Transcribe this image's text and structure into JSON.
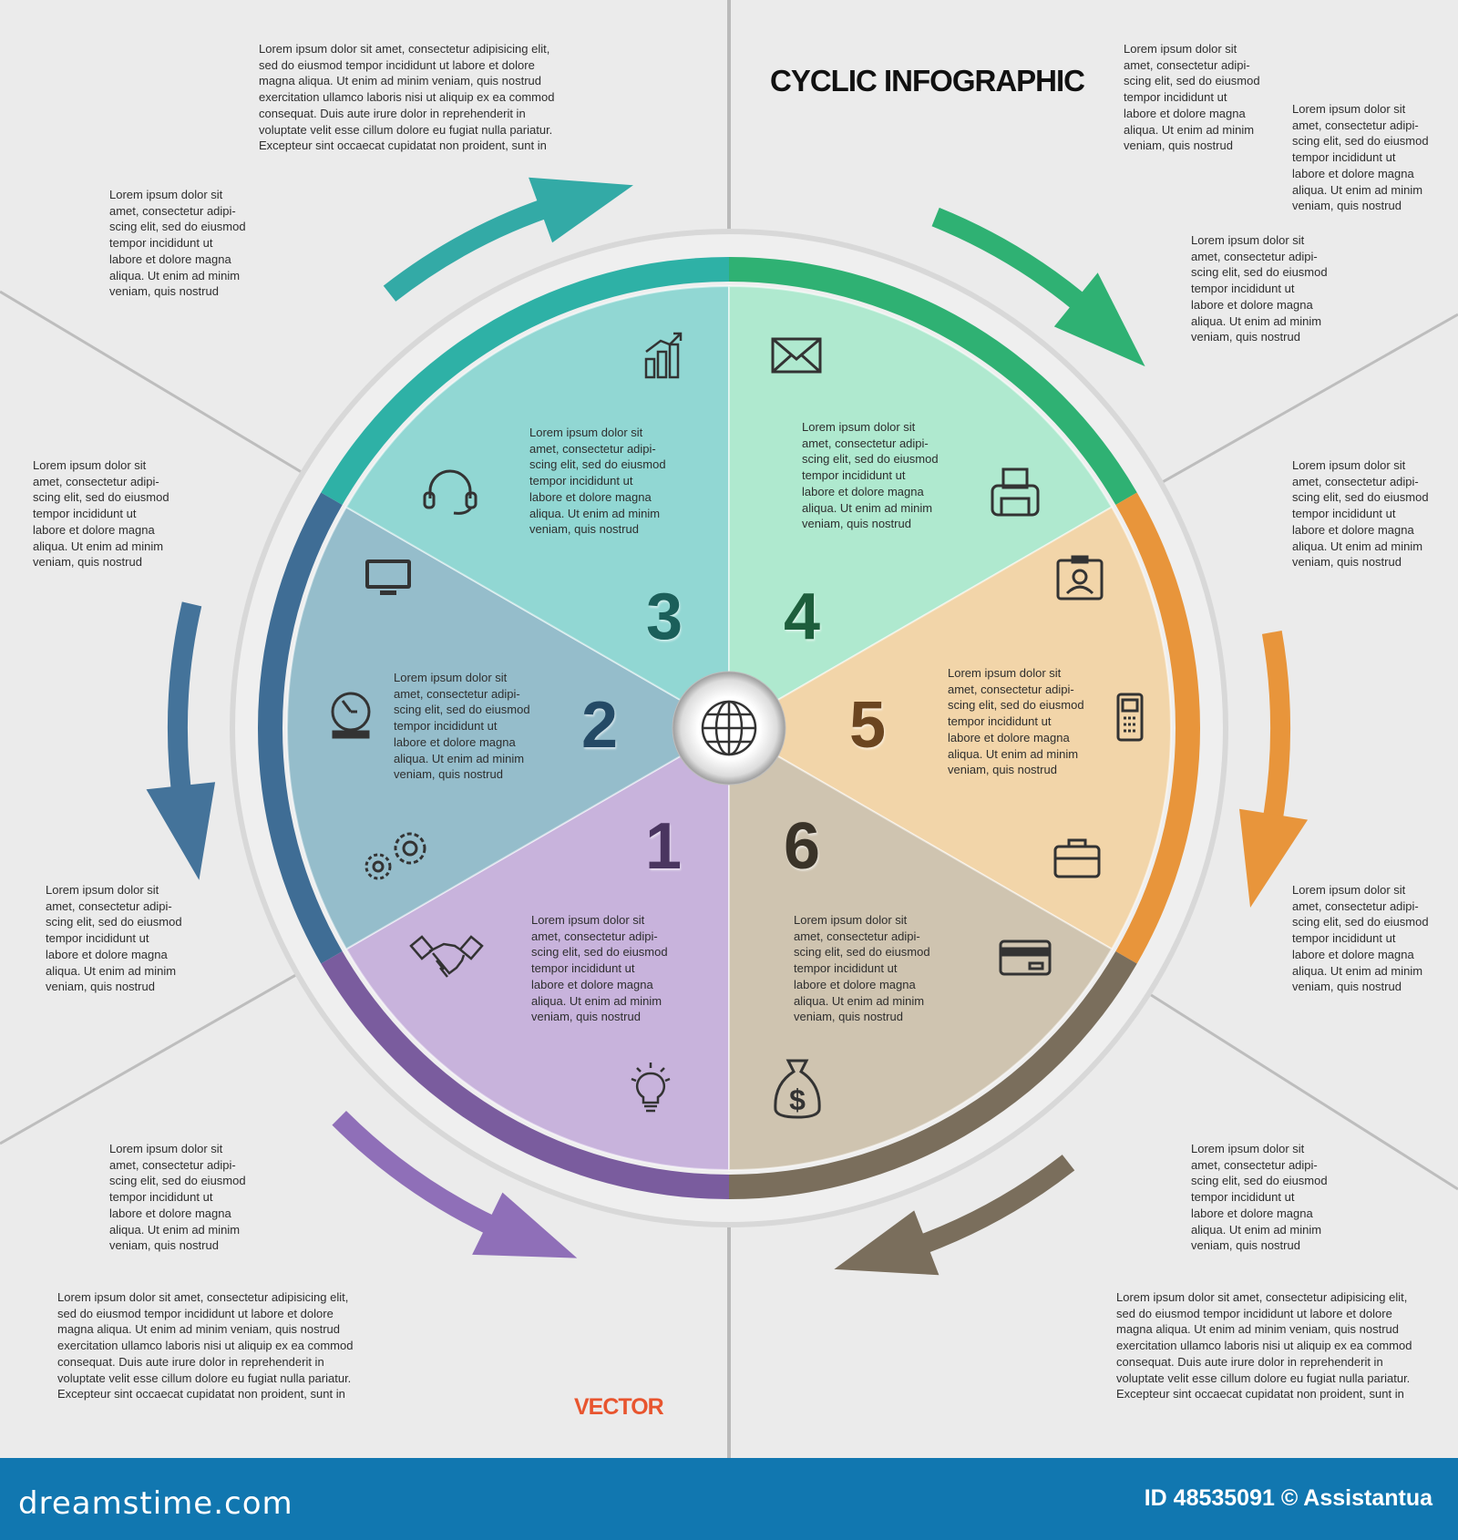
{
  "title": "CYCLIC INFOGRAPHIC",
  "vector_label": "VECTOR",
  "footer": {
    "logo": "dreamstime.com",
    "credit": "ID 48535091 © Assistantua",
    "color": "#1177b0"
  },
  "accent_colors": {
    "title": "#111111",
    "vector": "#e8552f"
  },
  "center_icon": "globe-icon",
  "segments": [
    {
      "number": "1",
      "fill": "#c8b3dc",
      "ring": "#7a5c9e",
      "number_color": "#4a3560",
      "arrow": "#8f6fb8",
      "text": "Lorem ipsum dolor sit\namet, consectetur adipi-\nscing elit, sed do eiusmod\ntempor incididunt ut\nlabore et dolore magna\naliqua. Ut enim ad minim\nveniam, quis nostrud",
      "icons": [
        "handshake-icon",
        "lightbulb-icon"
      ]
    },
    {
      "number": "2",
      "fill": "#95bdcb",
      "ring": "#3f6d95",
      "number_color": "#244a66",
      "arrow": "#44739a",
      "text": "Lorem ipsum dolor sit\namet, consectetur adipi-\nscing elit, sed do eiusmod\ntempor incididunt ut\nlabore et dolore magna\naliqua. Ut enim ad minim\nveniam, quis nostrud",
      "icons": [
        "monitor-icon",
        "clock-icon",
        "gears-icon"
      ]
    },
    {
      "number": "3",
      "fill": "#91d7d3",
      "ring": "#2eb1a6",
      "number_color": "#1b5f5a",
      "arrow": "#33aaa6",
      "text": "Lorem ipsum dolor sit\namet, consectetur adipi-\nscing elit, sed do eiusmod\ntempor incididunt ut\nlabore et dolore magna\naliqua. Ut enim ad minim\nveniam, quis nostrud",
      "icons": [
        "bar-chart-icon",
        "headset-icon"
      ]
    },
    {
      "number": "4",
      "fill": "#afe9cf",
      "ring": "#2fb173",
      "number_color": "#1d5e3c",
      "arrow": "#2fb173",
      "text": "Lorem ipsum dolor sit\namet, consectetur adipi-\nscing elit, sed do eiusmod\ntempor incididunt ut\nlabore et dolore magna\naliqua. Ut enim ad minim\nveniam, quis nostrud",
      "icons": [
        "envelope-icon",
        "printer-icon"
      ]
    },
    {
      "number": "5",
      "fill": "#f2d5a9",
      "ring": "#e8953b",
      "number_color": "#6b4520",
      "arrow": "#e8953b",
      "text": "Lorem ipsum dolor sit\namet, consectetur adipi-\nscing elit, sed do eiusmod\ntempor incididunt ut\nlabore et dolore magna\naliqua. Ut enim ad minim\nveniam, quis nostrud",
      "icons": [
        "id-card-icon",
        "mobile-phone-icon",
        "briefcase-icon"
      ]
    },
    {
      "number": "6",
      "fill": "#cfc4b0",
      "ring": "#7a6e5c",
      "number_color": "#3a3328",
      "arrow": "#7a6e5c",
      "text": "Lorem ipsum dolor sit\namet, consectetur adipi-\nscing elit, sed do eiusmod\ntempor incididunt ut\nlabore et dolore magna\naliqua. Ut enim ad minim\nveniam, quis nostrud",
      "icons": [
        "credit-card-icon",
        "money-bag-icon"
      ]
    }
  ],
  "side_texts": {
    "long": "Lorem ipsum dolor sit amet, consectetur adipisicing elit,\nsed do eiusmod tempor incididunt ut labore et dolore\nmagna aliqua. Ut enim ad minim veniam, quis nostrud\nexercitation ullamco laboris nisi ut aliquip ex ea commod\nconsequat. Duis aute irure dolor in reprehenderit in\nvoluptate velit esse cillum dolore eu fugiat nulla pariatur.\nExcepteur sint occaecat cupidatat non proident, sunt in",
    "short": "Lorem ipsum dolor sit\namet, consectetur adipi-\nscing elit, sed do eiusmod\ntempor incididunt ut\nlabore et dolore magna\naliqua. Ut enim ad minim\nveniam, quis nostrud"
  }
}
